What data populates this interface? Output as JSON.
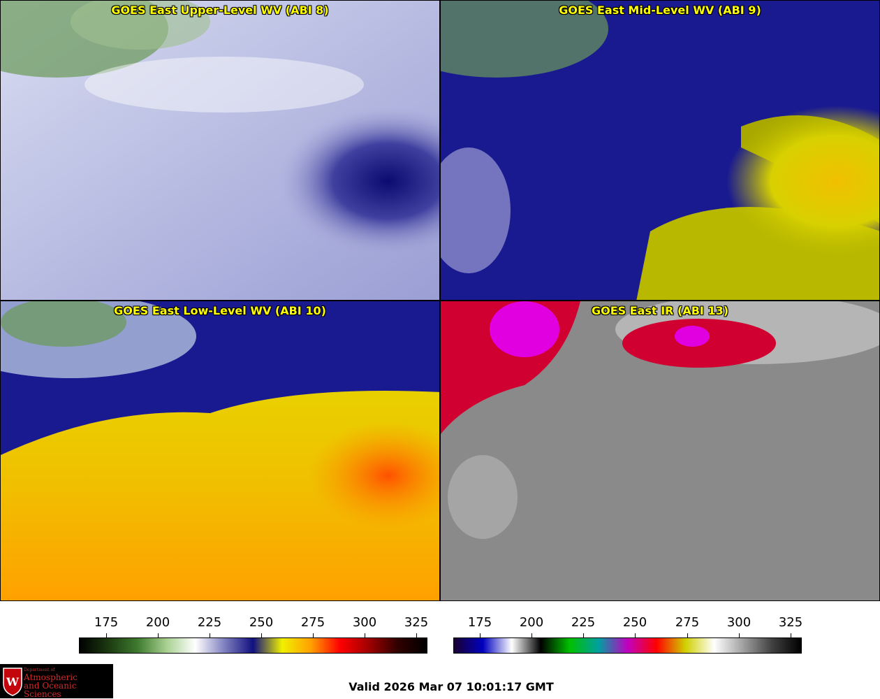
{
  "panels": [
    {
      "title": "GOES East Upper-Level WV (ABI 8)",
      "scheme": "upper"
    },
    {
      "title": "GOES East Mid-Level WV (ABI 9)",
      "scheme": "mid"
    },
    {
      "title": "GOES East Low-Level WV (ABI 10)",
      "scheme": "low"
    },
    {
      "title": "GOES East IR (ABI 13)",
      "scheme": "ir"
    }
  ],
  "colorbars": {
    "wv": {
      "ticks": [
        "175",
        "200",
        "225",
        "250",
        "275",
        "300",
        "325"
      ],
      "colors": [
        "#000000",
        "#1c3a10",
        "#3d7a2e",
        "#a8d090",
        "#ffffff",
        "#8080c0",
        "#101080",
        "#f0f000",
        "#ffa000",
        "#ff0000",
        "#a00000",
        "#300000",
        "#000000"
      ]
    },
    "ir": {
      "ticks": [
        "175",
        "200",
        "225",
        "250",
        "275",
        "300",
        "325"
      ],
      "colors": [
        "#1a0030",
        "#0000c0",
        "#ffffff",
        "#000000",
        "#00c000",
        "#00a0a0",
        "#c000c0",
        "#ff0000",
        "#d0d000",
        "#ffffff",
        "#a0a0a0",
        "#404040",
        "#000000"
      ]
    }
  },
  "logo": {
    "line1": "Department of",
    "line2": "Atmospheric",
    "line3": "and Oceanic Sciences"
  },
  "valid_text": "Valid 2026 Mar 07 10:01:17 GMT"
}
